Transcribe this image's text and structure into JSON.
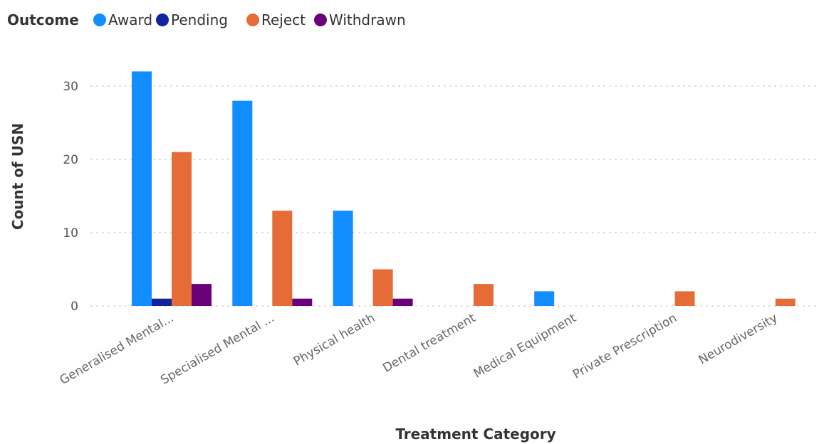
{
  "chart_data": {
    "type": "bar",
    "legend": {
      "title": "Outcome",
      "placement": "top-left"
    },
    "series": [
      {
        "name": "Award",
        "color": "#118DFF",
        "values": [
          32,
          28,
          13,
          0,
          2,
          0,
          0
        ]
      },
      {
        "name": "Pending",
        "color": "#12239E",
        "values": [
          1,
          0,
          0,
          0,
          0,
          0,
          0
        ]
      },
      {
        "name": "Reject",
        "color": "#E66C37",
        "values": [
          21,
          13,
          5,
          3,
          0,
          2,
          1
        ]
      },
      {
        "name": "Withdrawn",
        "color": "#6B007B",
        "values": [
          3,
          1,
          1,
          0,
          0,
          0,
          0
        ]
      }
    ],
    "categories": [
      "Generalised Mental...",
      "Specialised Mental ...",
      "Physical health",
      "Dental treatment",
      "Medical Equipment",
      "Private Prescription",
      "Neurodiversity"
    ],
    "xlabel": "Treatment Category",
    "ylabel": "Count of USN",
    "yticks": [
      0,
      10,
      20,
      30
    ],
    "ylim": [
      0,
      33
    ],
    "grid": true
  }
}
